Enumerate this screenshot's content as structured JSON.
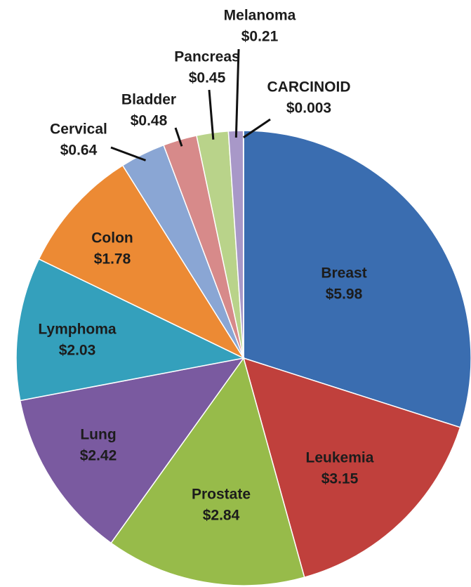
{
  "chart_data": {
    "type": "pie",
    "categories": [
      "Breast",
      "Leukemia",
      "Prostate",
      "Lung",
      "Lymphoma",
      "Colon",
      "Cervical",
      "Bladder",
      "Pancreas",
      "Melanoma",
      "CARCINOID"
    ],
    "values": [
      5.98,
      3.15,
      2.84,
      2.42,
      2.03,
      1.78,
      0.64,
      0.48,
      0.45,
      0.21,
      0.003
    ],
    "value_labels": [
      "$5.98",
      "$3.15",
      "$2.84",
      "$2.42",
      "$2.03",
      "$1.78",
      "$0.64",
      "$0.48",
      "$0.45",
      "$0.21",
      "$0.003"
    ],
    "colors": [
      "#3a6db0",
      "#c0403c",
      "#97bb4a",
      "#7a5aa0",
      "#34a0bc",
      "#ec8a34",
      "#8aa6d4",
      "#d78a8a",
      "#b9d38a",
      "#a898c8",
      "#80c8d8"
    ]
  }
}
